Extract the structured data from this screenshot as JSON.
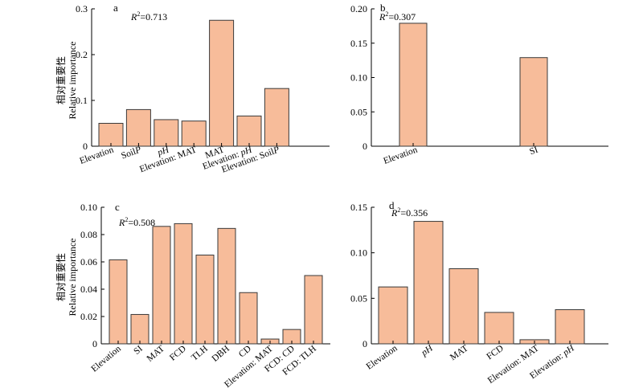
{
  "colors": {
    "bar_fill": "#F7BC9A",
    "bar_stroke": "#3a3a3a",
    "axis": "#000000"
  },
  "ylabel_cn": "相对重要性",
  "ylabel_en": "Relative importance",
  "chart_data": [
    {
      "type": "bar",
      "panel": "a",
      "r2_label": "R",
      "r2_value": "=0.713",
      "categories": [
        "Elevation",
        "SoilP",
        "pH",
        "Elevation: MAT",
        "MAT",
        "Elevation: pH",
        "Elevation: SoilP"
      ],
      "values": [
        0.05,
        0.08,
        0.058,
        0.055,
        0.275,
        0.066,
        0.126
      ],
      "ylim": [
        0,
        0.3
      ],
      "yticks": [
        0,
        0.1,
        0.2,
        0.3
      ],
      "ytick_labels": [
        "0",
        "0.1",
        "0.2",
        "0.3"
      ],
      "ylabel": "Relative importance"
    },
    {
      "type": "bar",
      "panel": "b",
      "r2_label": "R",
      "r2_value": "=0.307",
      "categories": [
        "Elevation",
        "SI"
      ],
      "values": [
        0.179,
        0.129
      ],
      "ylim": [
        0,
        0.2
      ],
      "yticks": [
        0,
        0.05,
        0.1,
        0.15,
        0.2
      ],
      "ytick_labels": [
        "0",
        "0.05",
        "0.10",
        "0.15",
        "0.20"
      ],
      "ylabel": ""
    },
    {
      "type": "bar",
      "panel": "c",
      "r2_label": "R",
      "r2_value": "=0.508",
      "categories": [
        "Elevation",
        "SI",
        "MAT",
        "FCD",
        "TLH",
        "DBH",
        "CD",
        "Elevation: MAT",
        "FCD: CD",
        "FCD: TLH"
      ],
      "values": [
        0.0615,
        0.0215,
        0.086,
        0.088,
        0.065,
        0.0845,
        0.0375,
        0.0035,
        0.0105,
        0.05
      ],
      "ylim": [
        0,
        0.1
      ],
      "yticks": [
        0,
        0.02,
        0.04,
        0.06,
        0.08,
        0.1
      ],
      "ytick_labels": [
        "0",
        "0.02",
        "0.04",
        "0.06",
        "0.08",
        "0.10"
      ],
      "ylabel": "Relative importance"
    },
    {
      "type": "bar",
      "panel": "d",
      "r2_label": "R",
      "r2_value": "=0.356",
      "categories": [
        "Elevation",
        "pH",
        "MAT",
        "FCD",
        "Elevation: MAT",
        "Elevation: pH"
      ],
      "values": [
        0.0625,
        0.1345,
        0.0825,
        0.0345,
        0.0045,
        0.0375
      ],
      "ylim": [
        0,
        0.15
      ],
      "yticks": [
        0,
        0.05,
        0.1,
        0.15
      ],
      "ytick_labels": [
        "0",
        "0.05",
        "0.10",
        "0.15"
      ],
      "ylabel": ""
    }
  ]
}
